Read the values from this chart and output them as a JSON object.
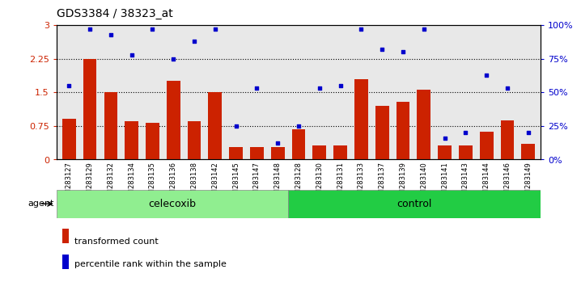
{
  "title": "GDS3384 / 38323_at",
  "samples": [
    "GSM283127",
    "GSM283129",
    "GSM283132",
    "GSM283134",
    "GSM283135",
    "GSM283136",
    "GSM283138",
    "GSM283142",
    "GSM283145",
    "GSM283147",
    "GSM283148",
    "GSM283128",
    "GSM283130",
    "GSM283131",
    "GSM283133",
    "GSM283137",
    "GSM283139",
    "GSM283140",
    "GSM283141",
    "GSM283143",
    "GSM283144",
    "GSM283146",
    "GSM283149"
  ],
  "transformed_count": [
    0.9,
    2.25,
    1.5,
    0.85,
    0.82,
    1.75,
    0.85,
    1.5,
    0.28,
    0.27,
    0.28,
    0.68,
    0.32,
    0.32,
    1.8,
    1.2,
    1.28,
    1.55,
    0.32,
    0.32,
    0.62,
    0.88,
    0.35
  ],
  "percentile_rank": [
    55,
    97,
    93,
    78,
    97,
    75,
    88,
    97,
    25,
    53,
    12,
    25,
    53,
    55,
    97,
    82,
    80,
    97,
    16,
    20,
    63,
    53,
    20
  ],
  "celecoxib_count": 11,
  "control_count": 12,
  "bar_color": "#cc2200",
  "dot_color": "#0000cc",
  "celecoxib_color": "#90ee90",
  "control_color": "#22cc44",
  "label_celecoxib": "celecoxib",
  "label_control": "control",
  "ylim_left": [
    0,
    3.0
  ],
  "ylim_right": [
    0,
    100
  ],
  "yticks_left": [
    0,
    0.75,
    1.5,
    2.25,
    3.0
  ],
  "ytick_labels_left": [
    "0",
    "0.75",
    "1.5",
    "2.25",
    "3"
  ],
  "yticks_right": [
    0,
    25,
    50,
    75,
    100
  ],
  "ytick_labels_right": [
    "0%",
    "25%",
    "50%",
    "75%",
    "100%"
  ],
  "grid_lines": [
    0.75,
    1.5,
    2.25
  ],
  "background_color": "#ffffff",
  "legend_transformed": "transformed count",
  "legend_percentile": "percentile rank within the sample"
}
